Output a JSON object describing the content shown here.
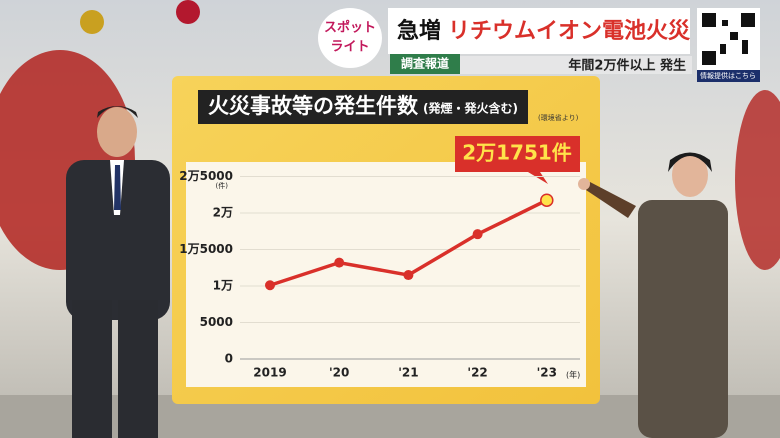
{
  "broadcast": {
    "logo": [
      "スポット",
      "ライト"
    ],
    "headline_lead": "急増",
    "headline": "リチウムイオン電池火災",
    "tag": "調査報道",
    "caption": "年間2万件以上 発生",
    "qr_label": "情報提供はこちら"
  },
  "chart_data": {
    "type": "line",
    "title": "火災事故等の発生件数",
    "subtitle": "(発煙・発火含む)",
    "source": "(環境省より)",
    "annotation": "2万1751件",
    "y_unit": "(件)",
    "x_unit": "(年)",
    "categories": [
      "2019",
      "'20",
      "'21",
      "'22",
      "'23"
    ],
    "series": [
      {
        "color": "#d9302a",
        "values": [
          10100,
          13200,
          11500,
          17100,
          21751
        ]
      }
    ],
    "ylim": [
      0,
      25000
    ],
    "yticks": [
      0,
      5000,
      {
        "value": 10000,
        "label": "1万"
      },
      {
        "value": 15000,
        "label": "1万5000"
      },
      {
        "value": 20000,
        "label": "2万"
      },
      {
        "value": 25000,
        "label": "2万5000"
      }
    ],
    "grid": true
  }
}
